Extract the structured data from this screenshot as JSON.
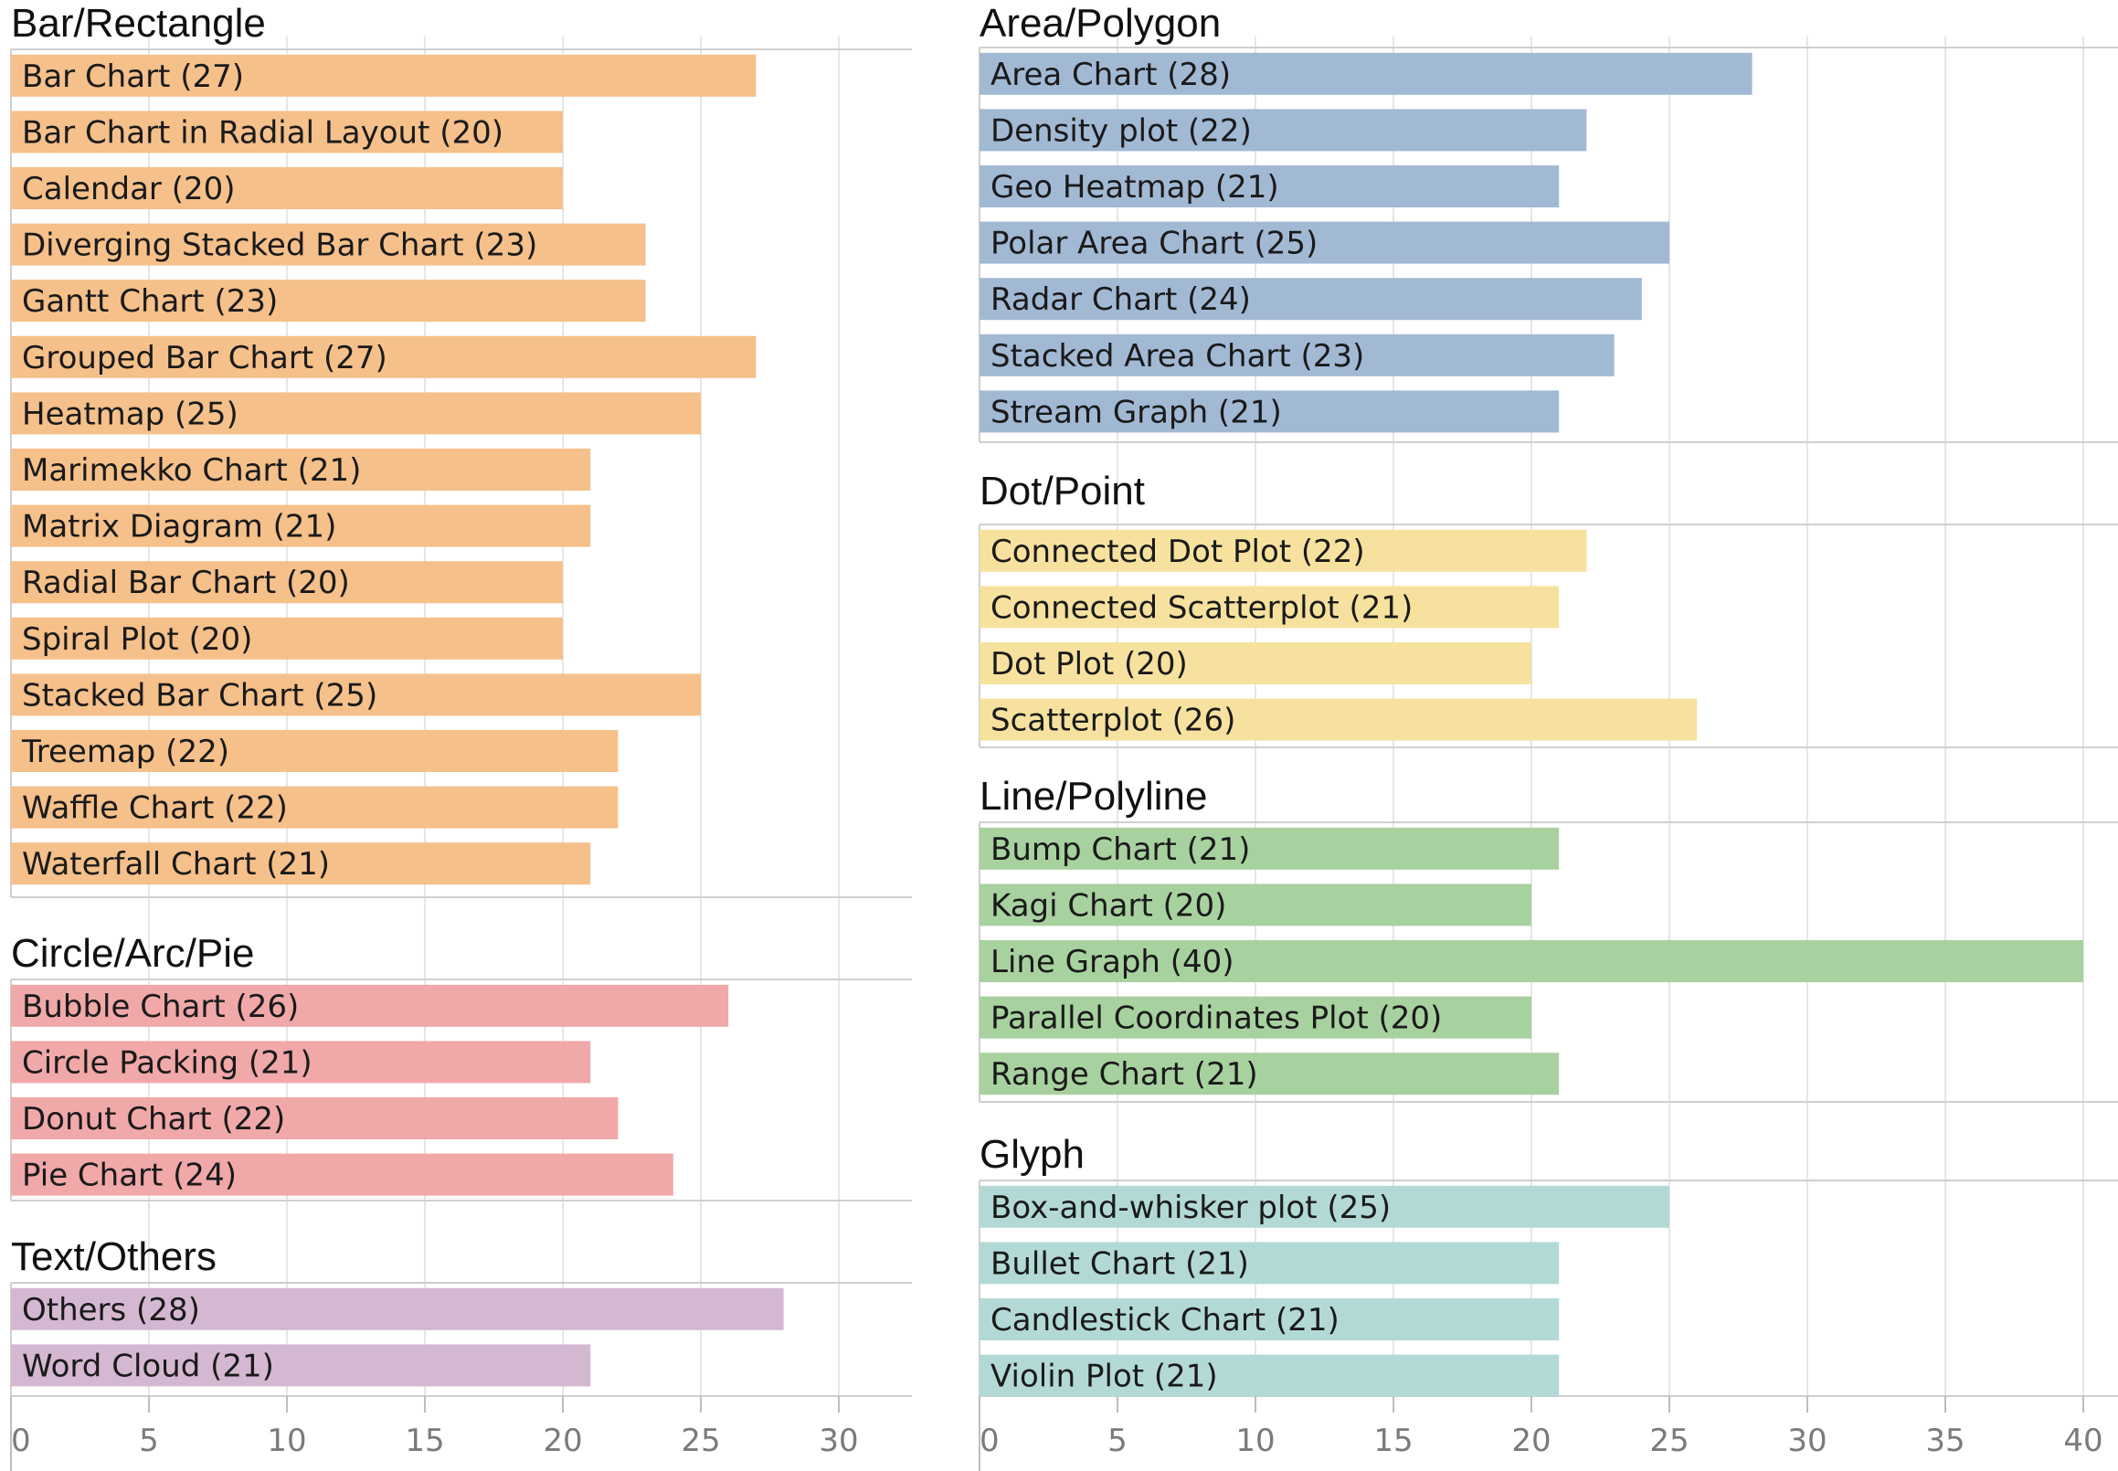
{
  "chart_data": {
    "type": "bar",
    "orientation": "horizontal",
    "title": "",
    "xlabel": "",
    "ylabel": "",
    "columns": [
      {
        "xlim": [
          0,
          33
        ],
        "ticks": [
          0,
          5,
          10,
          15,
          20,
          25,
          30
        ],
        "groups": [
          {
            "name": "Bar/Rectangle",
            "color": "#f5c08a",
            "items": [
              {
                "label": "Bar Chart (27)",
                "value": 27
              },
              {
                "label": "Bar Chart in Radial Layout (20)",
                "value": 20
              },
              {
                "label": "Calendar (20)",
                "value": 20
              },
              {
                "label": "Diverging Stacked Bar Chart (23)",
                "value": 23
              },
              {
                "label": "Gantt Chart (23)",
                "value": 23
              },
              {
                "label": "Grouped Bar Chart (27)",
                "value": 27
              },
              {
                "label": "Heatmap (25)",
                "value": 25
              },
              {
                "label": "Marimekko Chart (21)",
                "value": 21
              },
              {
                "label": "Matrix Diagram (21)",
                "value": 21
              },
              {
                "label": "Radial Bar Chart (20)",
                "value": 20
              },
              {
                "label": "Spiral Plot (20)",
                "value": 20
              },
              {
                "label": "Stacked Bar Chart (25)",
                "value": 25
              },
              {
                "label": "Treemap (22)",
                "value": 22
              },
              {
                "label": "Waffle Chart (22)",
                "value": 22
              },
              {
                "label": "Waterfall Chart (21)",
                "value": 21
              }
            ]
          },
          {
            "name": "Circle/Arc/Pie",
            "color": "#f0a8a8",
            "items": [
              {
                "label": "Bubble Chart (26)",
                "value": 26
              },
              {
                "label": "Circle Packing (21)",
                "value": 21
              },
              {
                "label": "Donut Chart (22)",
                "value": 22
              },
              {
                "label": "Pie Chart (24)",
                "value": 24
              }
            ]
          },
          {
            "name": "Text/Others",
            "color": "#d4b8d2",
            "items": [
              {
                "label": "Others (28)",
                "value": 28
              },
              {
                "label": "Word Cloud (21)",
                "value": 21
              }
            ]
          }
        ]
      },
      {
        "xlim": [
          0,
          41
        ],
        "ticks": [
          0,
          5,
          10,
          15,
          20,
          25,
          30,
          35,
          40
        ],
        "groups": [
          {
            "name": "Area/Polygon",
            "color": "#a2b9d4",
            "items": [
              {
                "label": "Area Chart (28)",
                "value": 28
              },
              {
                "label": "Density plot (22)",
                "value": 22
              },
              {
                "label": "Geo Heatmap (21)",
                "value": 21
              },
              {
                "label": "Polar Area Chart (25)",
                "value": 25
              },
              {
                "label": "Radar Chart (24)",
                "value": 24
              },
              {
                "label": "Stacked Area Chart (23)",
                "value": 23
              },
              {
                "label": "Stream Graph (21)",
                "value": 21
              }
            ]
          },
          {
            "name": "Dot/Point",
            "color": "#f6e29e",
            "items": [
              {
                "label": "Connected Dot Plot (22)",
                "value": 22
              },
              {
                "label": "Connected Scatterplot (21)",
                "value": 21
              },
              {
                "label": "Dot Plot (20)",
                "value": 20
              },
              {
                "label": "Scatterplot (26)",
                "value": 26
              }
            ]
          },
          {
            "name": "Line/Polyline",
            "color": "#a8d1a0",
            "items": [
              {
                "label": "Bump Chart (21)",
                "value": 21
              },
              {
                "label": "Kagi Chart (20)",
                "value": 20
              },
              {
                "label": "Line Graph (40)",
                "value": 40
              },
              {
                "label": "Parallel Coordinates Plot (20)",
                "value": 20
              },
              {
                "label": "Range Chart (21)",
                "value": 21
              }
            ]
          },
          {
            "name": "Glyph",
            "color": "#b3d9d6",
            "items": [
              {
                "label": "Box-and-whisker plot (25)",
                "value": 25
              },
              {
                "label": "Bullet Chart (21)",
                "value": 21
              },
              {
                "label": "Candlestick Chart (21)",
                "value": 21
              },
              {
                "label": "Violin Plot (21)",
                "value": 21
              }
            ]
          }
        ]
      }
    ]
  }
}
